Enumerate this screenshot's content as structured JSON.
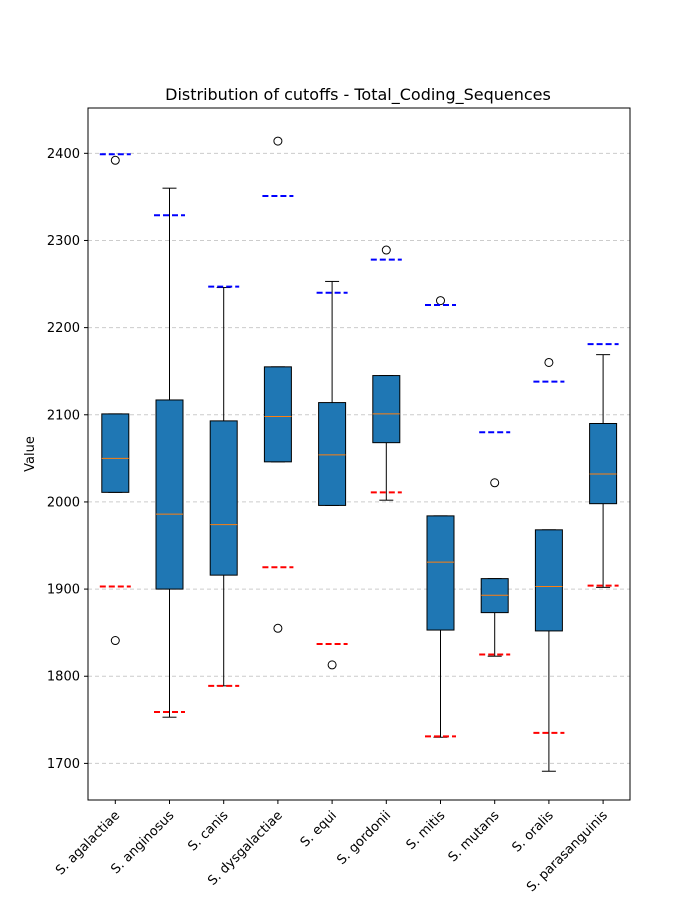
{
  "chart_data": {
    "type": "box",
    "title": "Distribution of cutoffs - Total_Coding_Sequences",
    "xlabel": "",
    "ylabel": "Value",
    "ylim": [
      1658,
      2452
    ],
    "yticks": [
      1700,
      1800,
      1900,
      2000,
      2100,
      2200,
      2300,
      2400
    ],
    "grid": "horizontal dashed",
    "colors": {
      "box_fill": "#1f77b4",
      "median": "#ff7f0e",
      "upper_cutoff": "#0000ff",
      "lower_cutoff": "#ff0000",
      "grid": "#cccccc"
    },
    "categories": [
      "S. agalactiae",
      "S. anginosus",
      "S. canis",
      "S. dysgalactiae",
      "S. equi",
      "S. gordonii",
      "S. mitis",
      "S. mutans",
      "S. oralis",
      "S. parasanguinis"
    ],
    "boxes": [
      {
        "whislo": 2011,
        "q1": 2011,
        "med": 2050,
        "q3": 2101,
        "whishi": 2101,
        "fliers": [
          2392,
          1841
        ],
        "upper_cutoff": 2399,
        "lower_cutoff": 1903
      },
      {
        "whislo": 1753,
        "q1": 1900,
        "med": 1986,
        "q3": 2117,
        "whishi": 2360,
        "fliers": [],
        "upper_cutoff": 2329,
        "lower_cutoff": 1759
      },
      {
        "whislo": 1789,
        "q1": 1916,
        "med": 1974,
        "q3": 2093,
        "whishi": 2246,
        "fliers": [],
        "upper_cutoff": 2247,
        "lower_cutoff": 1789
      },
      {
        "whislo": 2046,
        "q1": 2046,
        "med": 2098,
        "q3": 2155,
        "whishi": 2155,
        "fliers": [
          2414,
          1855
        ],
        "upper_cutoff": 2351,
        "lower_cutoff": 1925
      },
      {
        "whislo": 1996,
        "q1": 1996,
        "med": 2054,
        "q3": 2114,
        "whishi": 2253,
        "fliers": [
          1813
        ],
        "upper_cutoff": 2240,
        "lower_cutoff": 1837
      },
      {
        "whislo": 2002,
        "q1": 2068,
        "med": 2101,
        "q3": 2145,
        "whishi": 2145,
        "fliers": [
          2289
        ],
        "upper_cutoff": 2278,
        "lower_cutoff": 2011
      },
      {
        "whislo": 1730,
        "q1": 1853,
        "med": 1931,
        "q3": 1984,
        "whishi": 1984,
        "fliers": [
          2231
        ],
        "upper_cutoff": 2226,
        "lower_cutoff": 1731
      },
      {
        "whislo": 1823,
        "q1": 1873,
        "med": 1893,
        "q3": 1912,
        "whishi": 1912,
        "fliers": [
          2022
        ],
        "upper_cutoff": 2080,
        "lower_cutoff": 1825
      },
      {
        "whislo": 1691,
        "q1": 1852,
        "med": 1903,
        "q3": 1968,
        "whishi": 1968,
        "fliers": [
          2160
        ],
        "upper_cutoff": 2138,
        "lower_cutoff": 1735
      },
      {
        "whislo": 1902,
        "q1": 1998,
        "med": 2032,
        "q3": 2090,
        "whishi": 2169,
        "fliers": [],
        "upper_cutoff": 2181,
        "lower_cutoff": 1904
      }
    ]
  }
}
